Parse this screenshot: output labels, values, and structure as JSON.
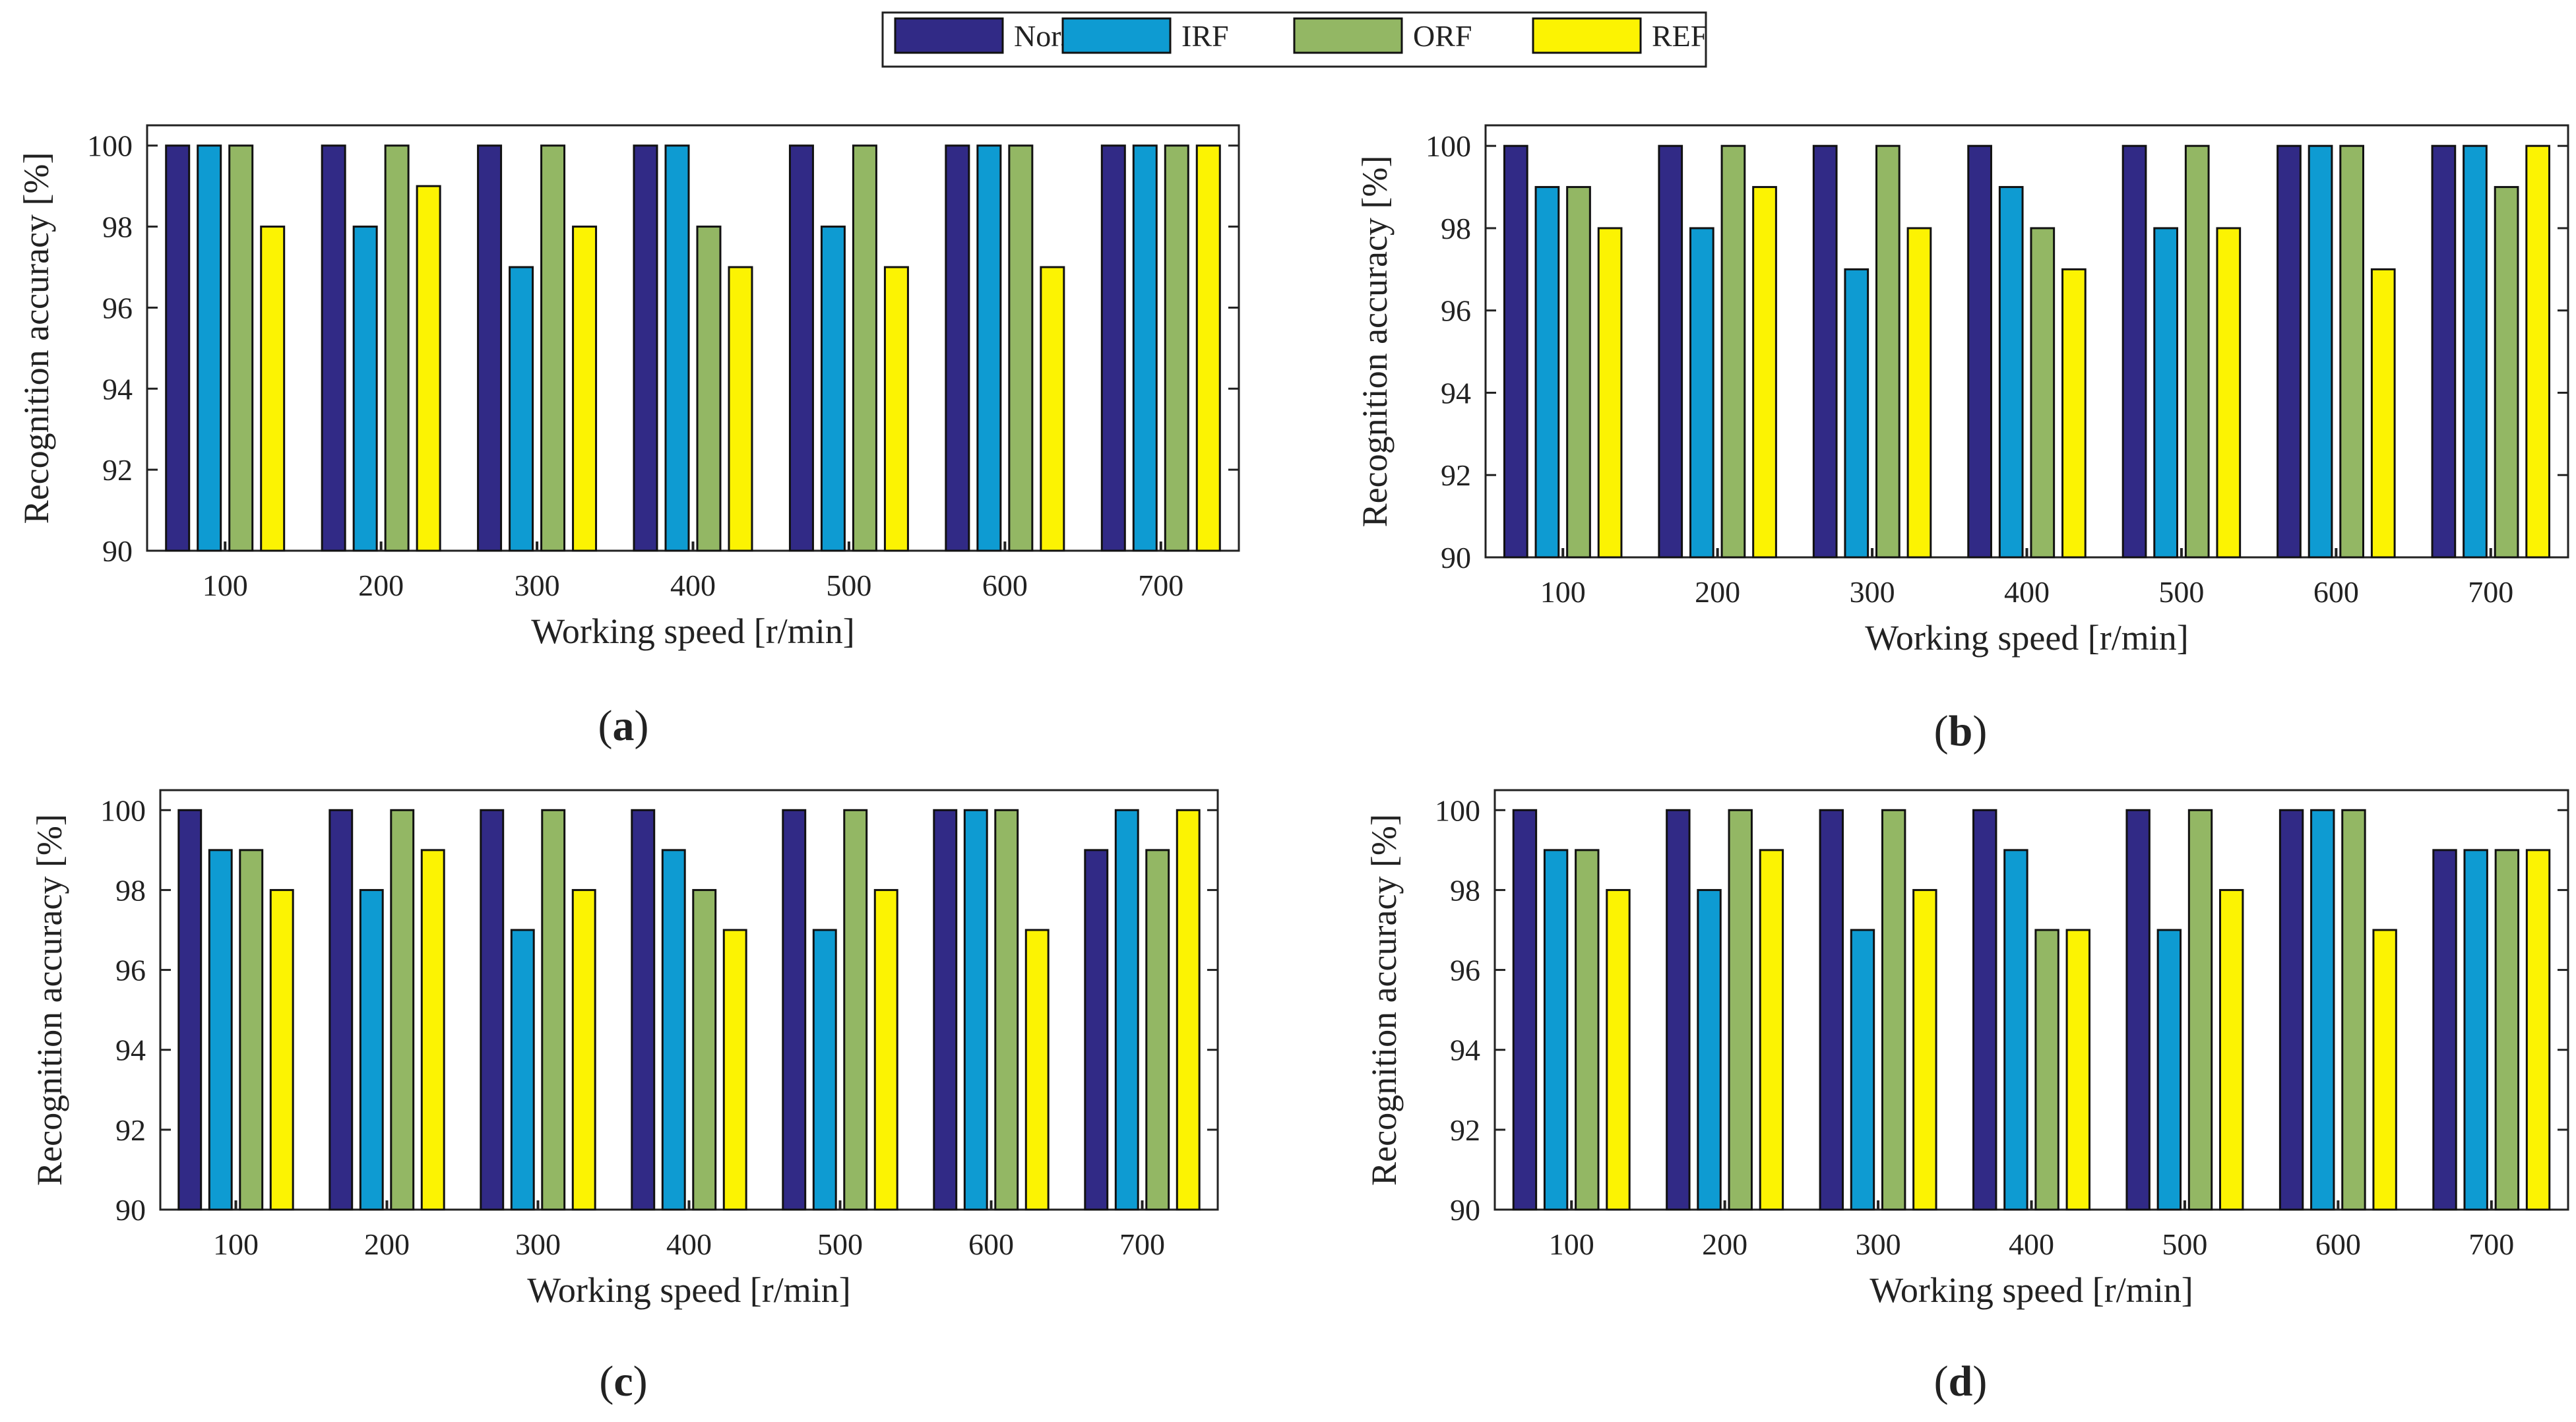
{
  "legend": {
    "entries": [
      {
        "label": "Nor.",
        "color": "#312a86"
      },
      {
        "label": "IRF",
        "color": "#0e9bd2"
      },
      {
        "label": "ORF",
        "color": "#93b764"
      },
      {
        "label": "REF",
        "color": "#fcf302"
      }
    ]
  },
  "chart_data": [
    {
      "type": "bar",
      "panel_label": "a",
      "categories": [
        "100",
        "200",
        "300",
        "400",
        "500",
        "600",
        "700"
      ],
      "series": [
        {
          "name": "Nor.",
          "values": [
            100,
            100,
            100,
            100,
            100,
            100,
            100
          ]
        },
        {
          "name": "IRF",
          "values": [
            100,
            98,
            97,
            100,
            98,
            100,
            100
          ]
        },
        {
          "name": "ORF",
          "values": [
            100,
            100,
            100,
            98,
            100,
            100,
            100
          ]
        },
        {
          "name": "REF",
          "values": [
            98,
            99,
            98,
            97,
            97,
            97,
            100
          ]
        }
      ],
      "xlabel": "Working speed [r/min]",
      "ylabel": "Recognition accuracy [%]",
      "ylim": [
        90,
        100.5
      ],
      "yticks": [
        90,
        92,
        94,
        96,
        98,
        100
      ],
      "grid": false
    },
    {
      "type": "bar",
      "panel_label": "b",
      "categories": [
        "100",
        "200",
        "300",
        "400",
        "500",
        "600",
        "700"
      ],
      "series": [
        {
          "name": "Nor.",
          "values": [
            100,
            100,
            100,
            100,
            100,
            100,
            100
          ]
        },
        {
          "name": "IRF",
          "values": [
            99,
            98,
            97,
            99,
            98,
            100,
            100
          ]
        },
        {
          "name": "ORF",
          "values": [
            99,
            100,
            100,
            98,
            100,
            100,
            99
          ]
        },
        {
          "name": "REF",
          "values": [
            98,
            99,
            98,
            97,
            98,
            97,
            100
          ]
        }
      ],
      "xlabel": "Working speed [r/min]",
      "ylabel": "Recognition accuracy [%]",
      "ylim": [
        90,
        100.5
      ],
      "yticks": [
        90,
        92,
        94,
        96,
        98,
        100
      ],
      "grid": false
    },
    {
      "type": "bar",
      "panel_label": "c",
      "categories": [
        "100",
        "200",
        "300",
        "400",
        "500",
        "600",
        "700"
      ],
      "series": [
        {
          "name": "Nor.",
          "values": [
            100,
            100,
            100,
            100,
            100,
            100,
            99
          ]
        },
        {
          "name": "IRF",
          "values": [
            99,
            98,
            97,
            99,
            97,
            100,
            100
          ]
        },
        {
          "name": "ORF",
          "values": [
            99,
            100,
            100,
            98,
            100,
            100,
            99
          ]
        },
        {
          "name": "REF",
          "values": [
            98,
            99,
            98,
            97,
            98,
            97,
            100
          ]
        }
      ],
      "xlabel": "Working speed [r/min]",
      "ylabel": "Recognition accuracy [%]",
      "ylim": [
        90,
        100.5
      ],
      "yticks": [
        90,
        92,
        94,
        96,
        98,
        100
      ],
      "grid": false
    },
    {
      "type": "bar",
      "panel_label": "d",
      "categories": [
        "100",
        "200",
        "300",
        "400",
        "500",
        "600",
        "700"
      ],
      "series": [
        {
          "name": "Nor.",
          "values": [
            100,
            100,
            100,
            100,
            100,
            100,
            99
          ]
        },
        {
          "name": "IRF",
          "values": [
            99,
            98,
            97,
            99,
            97,
            100,
            99
          ]
        },
        {
          "name": "ORF",
          "values": [
            99,
            100,
            100,
            97,
            100,
            100,
            99
          ]
        },
        {
          "name": "REF",
          "values": [
            98,
            99,
            98,
            97,
            98,
            97,
            99
          ]
        }
      ],
      "xlabel": "Working speed [r/min]",
      "ylabel": "Recognition accuracy [%]",
      "ylim": [
        90,
        100.5
      ],
      "yticks": [
        90,
        92,
        94,
        96,
        98,
        100
      ],
      "grid": false
    }
  ]
}
